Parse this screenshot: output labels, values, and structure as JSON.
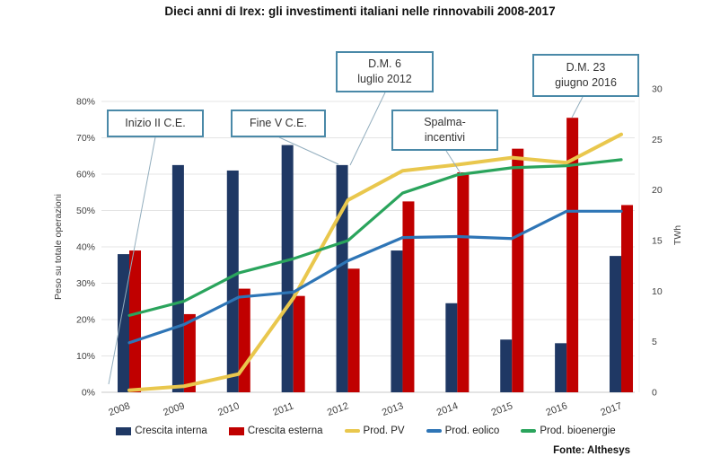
{
  "title": "Dieci anni di Irex: gli investimenti italiani nelle rinnovabili 2008-2017",
  "source": "Fonte: Althesys",
  "colors": {
    "bar_interna": "#1F3864",
    "bar_esterna": "#C00000",
    "line_pv": "#E9C74D",
    "line_eolico": "#2E75B6",
    "line_bioenergie": "#2AA45C",
    "annotation_border": "#4A89A8",
    "leader_line": "#93AEBE",
    "gridline": "#E4E4E4"
  },
  "axes": {
    "left": {
      "title": "Peso su totale operazioni",
      "ticks": [
        "0%",
        "10%",
        "20%",
        "30%",
        "40%",
        "50%",
        "60%",
        "70%",
        "80%"
      ],
      "range": [
        0,
        80
      ]
    },
    "right": {
      "title": "TWh",
      "ticks": [
        0,
        5,
        10,
        15,
        20,
        25,
        30
      ],
      "range": [
        0,
        30
      ]
    }
  },
  "annotations": {
    "inizio": "Inizio II C.E.",
    "fine": "Fine V C.E.",
    "dm6": "D.M. 6\nluglio 2012",
    "spalma": "Spalma-\nincentivi",
    "dm23": "D.M. 23\ngiugno 2016"
  },
  "legend": {
    "items": [
      {
        "label": "Crescita interna",
        "type": "bar",
        "color": "#1F3864"
      },
      {
        "label": "Crescita esterna",
        "type": "bar",
        "color": "#C00000"
      },
      {
        "label": "Prod. PV",
        "type": "line",
        "color": "#E9C74D"
      },
      {
        "label": "Prod. eolico",
        "type": "line",
        "color": "#2E75B6"
      },
      {
        "label": "Prod. bioenergie",
        "type": "line",
        "color": "#2AA45C"
      }
    ]
  },
  "chart_data": {
    "type": "combo-bar-line",
    "title": "Dieci anni di Irex: gli investimenti italiani nelle rinnovabili 2008-2017",
    "categories": [
      "2008",
      "2009",
      "2010",
      "2011",
      "2012",
      "2013",
      "2014",
      "2015",
      "2016",
      "2017"
    ],
    "left_axis_label": "Peso su totale operazioni",
    "right_axis_label": "TWh",
    "left_ylim": [
      0,
      80
    ],
    "right_ylim": [
      0,
      30
    ],
    "grid": true,
    "legend_position": "bottom",
    "bar_series": [
      {
        "id": "crescita-interna",
        "name": "Crescita interna",
        "axis": "left",
        "unit": "%",
        "color": "#1F3864",
        "values": [
          38,
          62.5,
          61,
          68,
          62.5,
          39,
          24.5,
          14.5,
          13.5,
          37.5
        ]
      },
      {
        "id": "crescita-esterna",
        "name": "Crescita esterna",
        "axis": "left",
        "unit": "%",
        "color": "#C00000",
        "values": [
          39,
          21.5,
          28.5,
          26.5,
          34,
          52.5,
          60.5,
          67,
          75.5,
          51.5
        ]
      }
    ],
    "line_series": [
      {
        "id": "prod-pv",
        "name": "Prod. PV",
        "axis": "right",
        "unit": "TWh",
        "color": "#E9C74D",
        "width": 4,
        "values": [
          0.2,
          0.6,
          1.8,
          9.3,
          19.0,
          21.9,
          22.5,
          23.2,
          22.7,
          25.5
        ]
      },
      {
        "id": "prod-eolico",
        "name": "Prod. eolico",
        "axis": "right",
        "unit": "TWh",
        "color": "#2E75B6",
        "width": 3.2,
        "values": [
          4.9,
          6.7,
          9.4,
          9.9,
          13.0,
          15.3,
          15.4,
          15.2,
          17.9,
          17.9
        ]
      },
      {
        "id": "prod-bioenergie",
        "name": "Prod. bioenergie",
        "axis": "right",
        "unit": "TWh",
        "color": "#2AA45C",
        "width": 3.2,
        "values": [
          7.6,
          9.0,
          11.8,
          13.2,
          15.0,
          19.7,
          21.5,
          22.2,
          22.4,
          23.0
        ]
      }
    ],
    "annotations": [
      "Inizio II C.E.",
      "Fine V C.E.",
      "D.M. 6 luglio 2012",
      "Spalma-incentivi",
      "D.M. 23 giugno 2016"
    ],
    "source": "Fonte: Althesys"
  }
}
